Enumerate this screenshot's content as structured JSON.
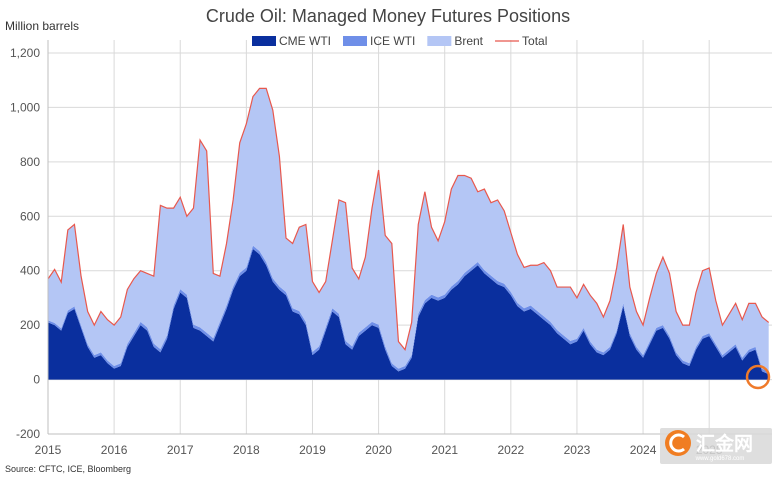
{
  "chart_data": {
    "type": "area",
    "title": "Crude Oil: Managed Money Futures Positions",
    "ylabel": "Million barrels",
    "ylim": [
      -200,
      1200
    ],
    "y_ticks": [
      "-200",
      "0",
      "200",
      "400",
      "600",
      "800",
      "1,000",
      "1,200"
    ],
    "y_tick_values": [
      -200,
      0,
      200,
      400,
      600,
      800,
      1000,
      1200
    ],
    "x_ticks": [
      "2015",
      "2016",
      "2017",
      "2018",
      "2019",
      "2020",
      "2021",
      "2022",
      "2023",
      "2024",
      "2025"
    ],
    "xlim": [
      2015.0,
      2025.95
    ],
    "grid": true,
    "legend_position": "top-center",
    "source": "Source: CFTC, ICE, Bloomberg",
    "x": [
      2015.0,
      2015.1,
      2015.2,
      2015.3,
      2015.4,
      2015.5,
      2015.6,
      2015.7,
      2015.8,
      2015.9,
      2016.0,
      2016.1,
      2016.2,
      2016.3,
      2016.4,
      2016.5,
      2016.6,
      2016.7,
      2016.8,
      2016.9,
      2017.0,
      2017.1,
      2017.2,
      2017.3,
      2017.4,
      2017.5,
      2017.6,
      2017.7,
      2017.8,
      2017.9,
      2018.0,
      2018.1,
      2018.2,
      2018.3,
      2018.4,
      2018.5,
      2018.6,
      2018.7,
      2018.8,
      2018.9,
      2019.0,
      2019.1,
      2019.2,
      2019.3,
      2019.4,
      2019.5,
      2019.6,
      2019.7,
      2019.8,
      2019.9,
      2020.0,
      2020.1,
      2020.2,
      2020.3,
      2020.4,
      2020.5,
      2020.6,
      2020.7,
      2020.8,
      2020.9,
      2021.0,
      2021.1,
      2021.2,
      2021.3,
      2021.4,
      2021.5,
      2021.6,
      2021.7,
      2021.8,
      2021.9,
      2022.0,
      2022.1,
      2022.2,
      2022.3,
      2022.4,
      2022.5,
      2022.6,
      2022.7,
      2022.8,
      2022.9,
      2023.0,
      2023.1,
      2023.2,
      2023.3,
      2023.4,
      2023.5,
      2023.6,
      2023.7,
      2023.8,
      2023.9,
      2024.0,
      2024.1,
      2024.2,
      2024.3,
      2024.4,
      2024.5,
      2024.6,
      2024.7,
      2024.8,
      2024.9,
      2025.0,
      2025.1,
      2025.2,
      2025.3,
      2025.4,
      2025.5,
      2025.6,
      2025.7,
      2025.8,
      2025.9
    ],
    "series": [
      {
        "name": "CME WTI",
        "kind": "area",
        "color": "#0a2f9e",
        "values": [
          210,
          200,
          180,
          245,
          260,
          190,
          120,
          80,
          90,
          60,
          40,
          50,
          120,
          160,
          200,
          180,
          120,
          100,
          150,
          260,
          320,
          300,
          190,
          180,
          160,
          140,
          200,
          260,
          330,
          380,
          400,
          480,
          460,
          420,
          360,
          330,
          310,
          250,
          240,
          200,
          90,
          110,
          180,
          250,
          230,
          130,
          110,
          160,
          180,
          200,
          190,
          110,
          50,
          30,
          40,
          80,
          230,
          280,
          300,
          290,
          300,
          330,
          350,
          380,
          400,
          420,
          390,
          370,
          350,
          340,
          310,
          270,
          250,
          260,
          240,
          220,
          200,
          170,
          150,
          130,
          140,
          180,
          130,
          100,
          90,
          110,
          170,
          270,
          160,
          110,
          80,
          130,
          180,
          190,
          150,
          90,
          60,
          50,
          110,
          150,
          160,
          120,
          80,
          100,
          120,
          70,
          100,
          110,
          30,
          20
        ]
      },
      {
        "name": "ICE WTI",
        "kind": "area",
        "color": "#6f8fe8",
        "values": [
          8,
          8,
          8,
          9,
          9,
          9,
          10,
          10,
          10,
          10,
          10,
          10,
          11,
          11,
          12,
          12,
          12,
          12,
          12,
          12,
          12,
          12,
          12,
          12,
          12,
          12,
          12,
          12,
          12,
          12,
          12,
          12,
          12,
          12,
          12,
          12,
          12,
          12,
          12,
          12,
          12,
          12,
          12,
          12,
          12,
          12,
          12,
          12,
          12,
          12,
          12,
          12,
          10,
          10,
          10,
          10,
          12,
          12,
          12,
          12,
          12,
          12,
          12,
          12,
          12,
          12,
          12,
          12,
          12,
          12,
          12,
          12,
          12,
          12,
          12,
          12,
          12,
          12,
          12,
          12,
          10,
          10,
          10,
          10,
          10,
          10,
          10,
          10,
          10,
          10,
          10,
          10,
          10,
          10,
          10,
          10,
          10,
          10,
          10,
          10,
          10,
          10,
          10,
          10,
          10,
          10,
          10,
          10,
          10,
          10
        ]
      },
      {
        "name": "Brent",
        "kind": "area",
        "color": "#b4c6f5",
        "values": [
          152,
          197,
          170,
          296,
          301,
          181,
          120,
          110,
          150,
          150,
          150,
          170,
          200,
          200,
          188,
          198,
          248,
          528,
          468,
          358,
          338,
          288,
          428,
          688,
          668,
          238,
          168,
          228,
          318,
          478,
          528,
          548,
          598,
          638,
          618,
          478,
          198,
          238,
          308,
          358,
          258,
          198,
          168,
          248,
          418,
          508,
          288,
          198,
          258,
          418,
          568,
          408,
          440,
          100,
          60,
          120,
          328,
          398,
          248,
          208,
          268,
          358,
          388,
          358,
          328,
          258,
          298,
          268,
          298,
          268,
          218,
          178,
          150,
          148,
          168,
          198,
          188,
          158,
          178,
          198,
          150,
          160,
          170,
          170,
          130,
          170,
          230,
          290,
          170,
          130,
          110,
          160,
          200,
          250,
          230,
          150,
          130,
          140,
          200,
          240,
          240,
          160,
          110,
          130,
          150,
          140,
          170,
          160,
          190,
          180
        ]
      },
      {
        "name": "Total",
        "kind": "line",
        "color": "#e8584d",
        "values": [
          370,
          405,
          358,
          550,
          570,
          380,
          250,
          200,
          250,
          220,
          200,
          230,
          331,
          371,
          400,
          390,
          380,
          640,
          630,
          630,
          670,
          600,
          630,
          880,
          840,
          390,
          380,
          500,
          660,
          870,
          940,
          1040,
          1070,
          1070,
          990,
          820,
          520,
          500,
          560,
          570,
          360,
          320,
          360,
          510,
          660,
          650,
          410,
          370,
          450,
          630,
          770,
          530,
          500,
          140,
          110,
          210,
          570,
          690,
          560,
          510,
          580,
          700,
          750,
          750,
          740,
          690,
          700,
          650,
          660,
          620,
          540,
          460,
          412,
          420,
          420,
          430,
          400,
          340,
          340,
          340,
          300,
          350,
          310,
          280,
          230,
          290,
          410,
          570,
          340,
          250,
          200,
          300,
          390,
          450,
          390,
          250,
          200,
          200,
          320,
          400,
          410,
          290,
          200,
          240,
          280,
          220,
          280,
          280,
          230,
          210
        ]
      }
    ]
  },
  "watermark": {
    "text": "汇金网",
    "url": "www.gold678.com"
  }
}
